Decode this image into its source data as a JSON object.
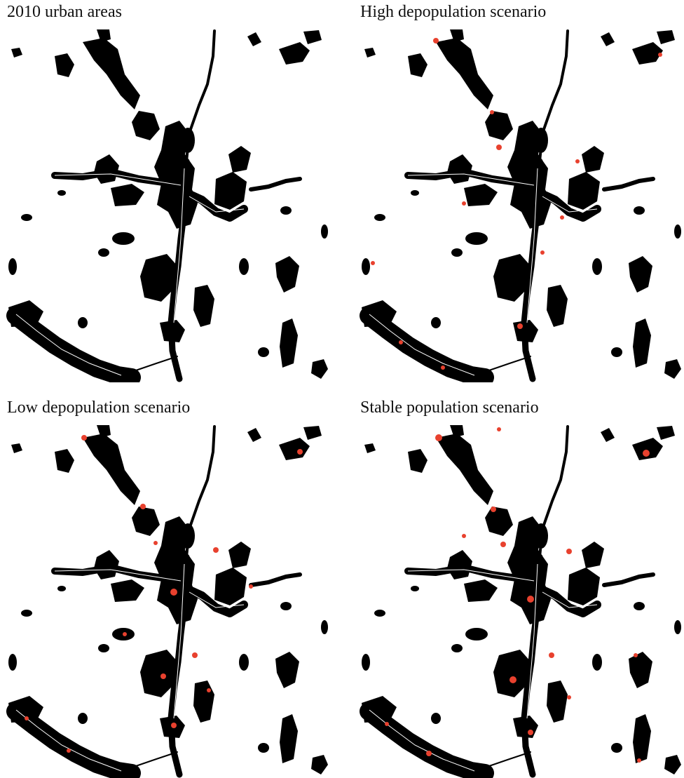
{
  "panels": [
    {
      "title": "2010 urban areas"
    },
    {
      "title": "High depopulation scenario"
    },
    {
      "title": "Low depopulation scenario"
    },
    {
      "title": "Stable population scenario"
    }
  ]
}
